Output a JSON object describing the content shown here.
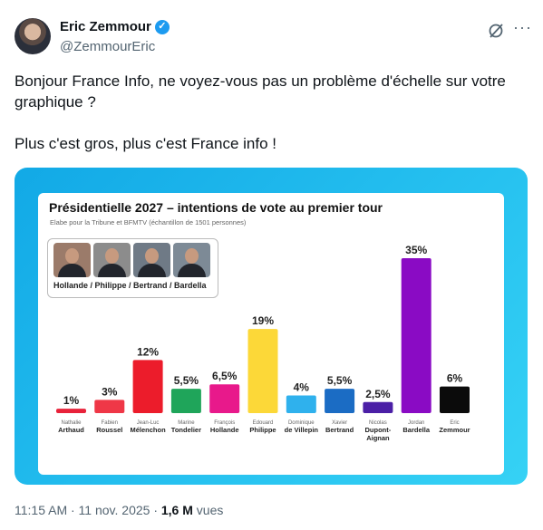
{
  "author": {
    "name": "Eric Zemmour",
    "handle": "@ZemmourEric",
    "verified_icon": "verified-badge-icon"
  },
  "tweet": {
    "text_1": "Bonjour France Info, ne voyez-vous pas un problème d'échelle sur votre graphique ?",
    "text_2": "Plus c'est gros, plus c'est France info !"
  },
  "colors": {
    "accent": "#1d9bf0",
    "media_bg": "#1fb5ec"
  },
  "chart_data": {
    "type": "bar",
    "title": "Présidentielle 2027 – intentions de vote au premier tour",
    "subtitle": "Elabe pour la Tribune et BFMTV (échantillon de 1501 personnes)",
    "scenario_label": "Hollande / Philippe / Bertrand / Bardella",
    "xlabel": "",
    "ylabel": "",
    "grid": false,
    "categories": [
      {
        "first": "Nathalie",
        "last": "Arthaud"
      },
      {
        "first": "Fabien",
        "last": "Roussel"
      },
      {
        "first": "Jean-Luc",
        "last": "Mélenchon"
      },
      {
        "first": "Marine",
        "last": "Tondelier"
      },
      {
        "first": "François",
        "last": "Hollande"
      },
      {
        "first": "Edouard",
        "last": "Philippe"
      },
      {
        "first": "Dominique",
        "last": "de Villepin"
      },
      {
        "first": "Xavier",
        "last": "Bertrand"
      },
      {
        "first": "Nicolas",
        "last": "Dupont-",
        "last2": "Aignan"
      },
      {
        "first": "Jordan",
        "last": "Bardella"
      },
      {
        "first": "Eric",
        "last": "Zemmour"
      }
    ],
    "values": [
      1,
      3,
      12,
      5.5,
      6.5,
      19,
      4,
      5.5,
      2.5,
      35,
      6
    ],
    "value_labels": [
      "1%",
      "3%",
      "12%",
      "5,5%",
      "6,5%",
      "19%",
      "4%",
      "5,5%",
      "2,5%",
      "35%",
      "6%"
    ],
    "bar_colors": [
      "#e8223a",
      "#ef3747",
      "#ec1c2b",
      "#1fa55a",
      "#e8198b",
      "#fcd838",
      "#2fb1ed",
      "#1b6cc4",
      "#4b1fa6",
      "#8a0bc4",
      "#0b0b0b"
    ]
  },
  "footer": {
    "time": "11:15 AM · 11 nov. 2025 · ",
    "views_count": "1,6 M",
    "views_label": " vues"
  }
}
